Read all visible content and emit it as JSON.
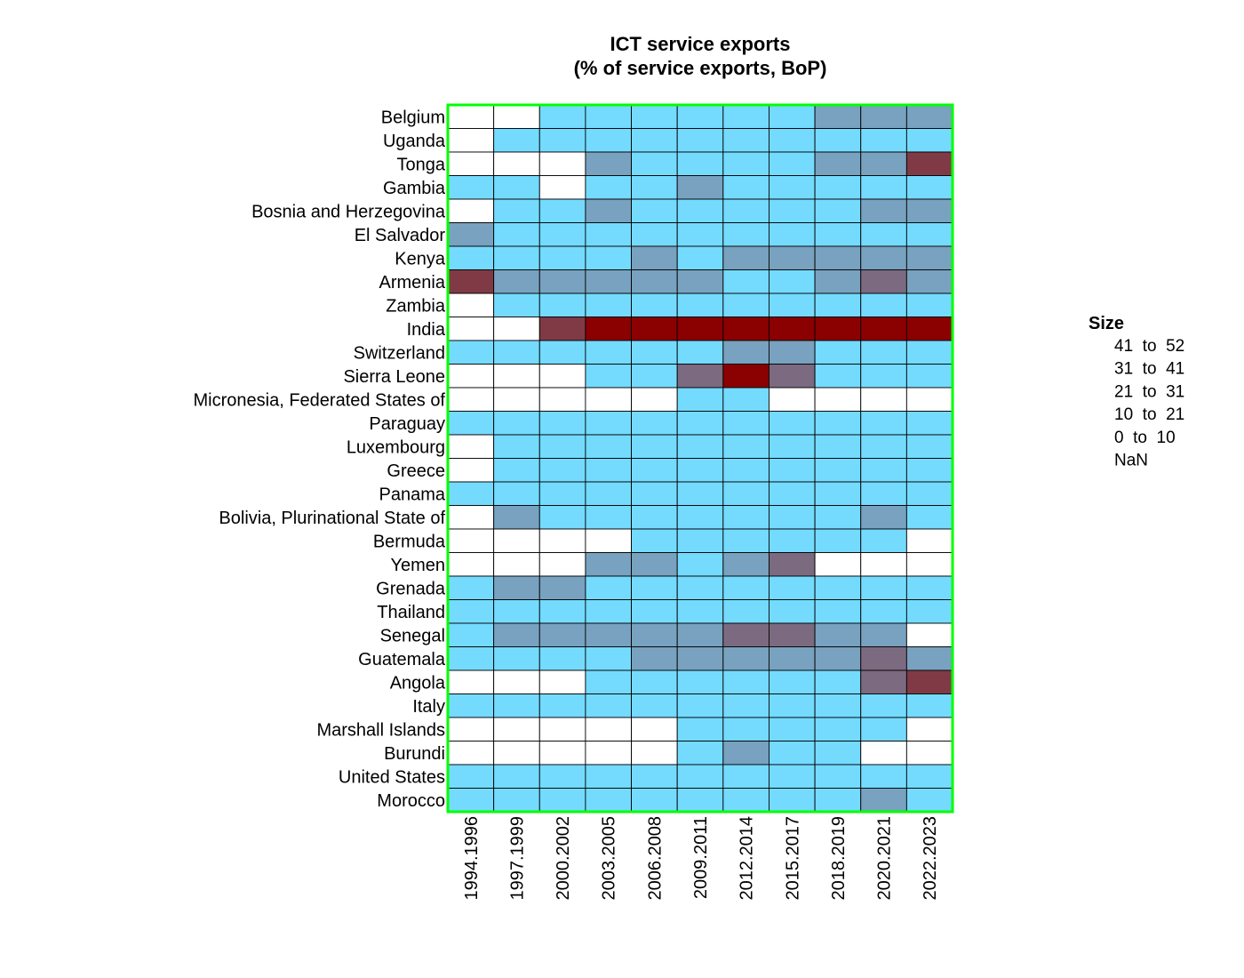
{
  "chart_data": {
    "type": "heatmap",
    "title": "ICT service exports\n(% of service exports, BoP)",
    "title_lines": [
      "ICT service exports",
      "(% of service exports, BoP)"
    ],
    "columns": [
      "1994.1996",
      "1997.1999",
      "2000.2002",
      "2003.2005",
      "2006.2008",
      "2009.2011",
      "2012.2014",
      "2015.2017",
      "2018.2019",
      "2020.2021",
      "2022.2023"
    ],
    "rows": [
      "Belgium",
      "Uganda",
      "Tonga",
      "Gambia",
      "Bosnia and Herzegovina",
      "El Salvador",
      "Kenya",
      "Armenia",
      "Zambia",
      "India",
      "Switzerland",
      "Sierra Leone",
      "Micronesia, Federated States of",
      "Paraguay",
      "Luxembourg",
      "Greece",
      "Panama",
      "Bolivia, Plurinational State of",
      "Bermuda",
      "Yemen",
      "Grenada",
      "Thailand",
      "Senegal",
      "Guatemala",
      "Angola",
      "Italy",
      "Marshall Islands",
      "Burundi",
      "United States",
      "Morocco"
    ],
    "legend": {
      "title": "Size",
      "items": [
        {
          "label": "41  to  52",
          "color": "#8b0000"
        },
        {
          "label": "31  to  41",
          "color": "#803a46"
        },
        {
          "label": "21  to  31",
          "color": "#7c6a80"
        },
        {
          "label": "10  to  21",
          "color": "#78a2bf"
        },
        {
          "label": "0  to  10",
          "color": "#74dbfe"
        },
        {
          "label": "NaN",
          "color": "#ffffff"
        }
      ]
    },
    "bins": [
      {
        "label": "41 to 52",
        "range": [
          41,
          52
        ]
      },
      {
        "label": "31 to 41",
        "range": [
          31,
          41
        ]
      },
      {
        "label": "21 to 31",
        "range": [
          21,
          31
        ]
      },
      {
        "label": "10 to 21",
        "range": [
          10,
          21
        ]
      },
      {
        "label": "0 to 10",
        "range": [
          0,
          10
        ]
      },
      {
        "label": "NaN",
        "range": null
      }
    ],
    "cells": [
      [
        null,
        null,
        0,
        0,
        0,
        0,
        0,
        0,
        1,
        1,
        1
      ],
      [
        null,
        0,
        0,
        0,
        0,
        0,
        0,
        0,
        0,
        0,
        0
      ],
      [
        null,
        null,
        null,
        1,
        0,
        0,
        0,
        0,
        1,
        1,
        3
      ],
      [
        0,
        0,
        null,
        0,
        0,
        1,
        0,
        0,
        0,
        0,
        0
      ],
      [
        null,
        0,
        0,
        1,
        0,
        0,
        0,
        0,
        0,
        1,
        1
      ],
      [
        1,
        0,
        0,
        0,
        0,
        0,
        0,
        0,
        0,
        0,
        0
      ],
      [
        0,
        0,
        0,
        0,
        1,
        0,
        1,
        1,
        1,
        1,
        1
      ],
      [
        3,
        1,
        1,
        1,
        1,
        1,
        0,
        0,
        1,
        2,
        1
      ],
      [
        null,
        0,
        0,
        0,
        0,
        0,
        0,
        0,
        0,
        0,
        0
      ],
      [
        null,
        null,
        3,
        4,
        4,
        4,
        4,
        4,
        4,
        4,
        4
      ],
      [
        0,
        0,
        0,
        0,
        0,
        0,
        1,
        1,
        0,
        0,
        0
      ],
      [
        null,
        null,
        null,
        0,
        0,
        2,
        4,
        2,
        0,
        0,
        0
      ],
      [
        null,
        null,
        null,
        null,
        null,
        0,
        0,
        null,
        null,
        null,
        null
      ],
      [
        0,
        0,
        0,
        0,
        0,
        0,
        0,
        0,
        0,
        0,
        0
      ],
      [
        null,
        0,
        0,
        0,
        0,
        0,
        0,
        0,
        0,
        0,
        0
      ],
      [
        null,
        0,
        0,
        0,
        0,
        0,
        0,
        0,
        0,
        0,
        0
      ],
      [
        0,
        0,
        0,
        0,
        0,
        0,
        0,
        0,
        0,
        0,
        0
      ],
      [
        null,
        1,
        0,
        0,
        0,
        0,
        0,
        0,
        0,
        1,
        0
      ],
      [
        null,
        null,
        null,
        null,
        0,
        0,
        0,
        0,
        0,
        0,
        null
      ],
      [
        null,
        null,
        null,
        1,
        1,
        0,
        1,
        2,
        null,
        null,
        null
      ],
      [
        0,
        1,
        1,
        0,
        0,
        0,
        0,
        0,
        0,
        0,
        0
      ],
      [
        0,
        0,
        0,
        0,
        0,
        0,
        0,
        0,
        0,
        0,
        0
      ],
      [
        0,
        1,
        1,
        1,
        1,
        1,
        2,
        2,
        1,
        1,
        null
      ],
      [
        0,
        0,
        0,
        0,
        1,
        1,
        1,
        1,
        1,
        2,
        1
      ],
      [
        null,
        null,
        null,
        0,
        0,
        0,
        0,
        0,
        0,
        2,
        3
      ],
      [
        0,
        0,
        0,
        0,
        0,
        0,
        0,
        0,
        0,
        0,
        0
      ],
      [
        null,
        null,
        null,
        null,
        null,
        0,
        0,
        0,
        0,
        0,
        null
      ],
      [
        null,
        null,
        null,
        null,
        null,
        0,
        1,
        0,
        0,
        null,
        null
      ],
      [
        0,
        0,
        0,
        0,
        0,
        0,
        0,
        0,
        0,
        0,
        0
      ],
      [
        0,
        0,
        0,
        0,
        0,
        0,
        0,
        0,
        0,
        1,
        0
      ]
    ],
    "cell_encoding": "bin index: 0 = 0 to 10, 1 = 10 to 21, 2 = 21 to 31, 3 = 31 to 41, 4 = 41 to 52, null = NaN",
    "bin_colors": [
      "#74dbfe",
      "#78a2bf",
      "#7c6a80",
      "#803a46",
      "#8b0000"
    ],
    "nan_color": "#ffffff",
    "frame_color": "#00ff00"
  }
}
